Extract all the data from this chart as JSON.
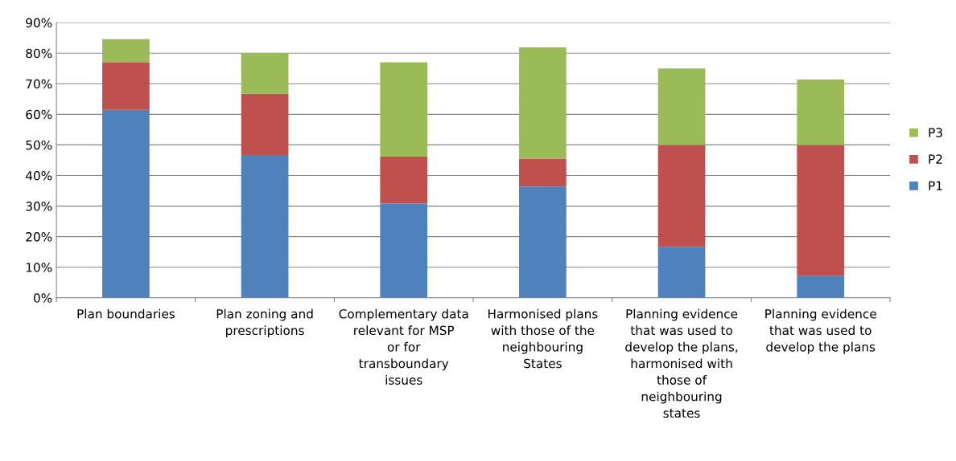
{
  "chart_data": {
    "type": "bar",
    "stacked": true,
    "categories": [
      "Plan boundaries",
      "Plan zoning and prescriptions",
      "Complementary data relevant for MSP or for transboundary issues",
      "Harmonised plans with those of the neighbouring States",
      "Planning evidence that was used to develop the plans, harmonised with those of neighbouring states",
      "Planning evidence that was used to develop the plans"
    ],
    "series": [
      {
        "name": "P1",
        "color": "#4f81bd",
        "values": [
          61.5,
          46.7,
          30.8,
          36.4,
          16.7,
          7.1
        ]
      },
      {
        "name": "P2",
        "color": "#c0504d",
        "values": [
          15.4,
          20.0,
          15.4,
          9.1,
          33.3,
          42.9
        ]
      },
      {
        "name": "P3",
        "color": "#9bbb59",
        "values": [
          7.7,
          13.3,
          30.8,
          36.4,
          25.0,
          21.4
        ]
      }
    ],
    "ylim": [
      0,
      90
    ],
    "yticks": [
      {
        "value": 0,
        "label": "0%"
      },
      {
        "value": 10,
        "label": "10%"
      },
      {
        "value": 20,
        "label": "20%"
      },
      {
        "value": 30,
        "label": "30%"
      },
      {
        "value": 40,
        "label": "40%"
      },
      {
        "value": 50,
        "label": "50%"
      },
      {
        "value": 60,
        "label": "60%"
      },
      {
        "value": 70,
        "label": "70%"
      },
      {
        "value": 80,
        "label": "80%"
      },
      {
        "value": 90,
        "label": "90%"
      }
    ],
    "grid": "y",
    "legend": "right"
  }
}
